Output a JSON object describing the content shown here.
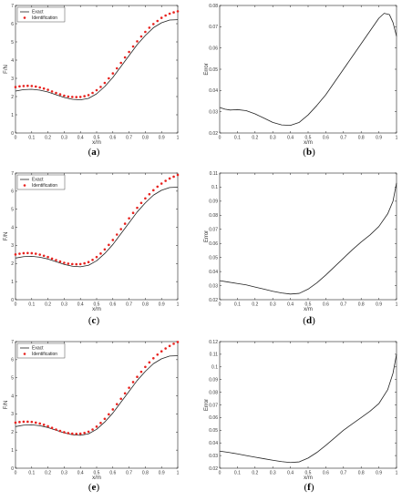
{
  "colors": {
    "exact": "#222222",
    "identification": "#e8231f",
    "error": "#222222",
    "axis": "#222222"
  },
  "chart_data": [
    {
      "id": "a",
      "panel_label": "a",
      "type": "line",
      "xlabel": "x/m",
      "ylabel": "F/N",
      "xlim": [
        0,
        1
      ],
      "ylim": [
        0,
        7
      ],
      "xticks": [
        "0",
        "0.1",
        "0.2",
        "0.3",
        "0.4",
        "0.5",
        "0.6",
        "0.7",
        "0.8",
        "0.9",
        "1"
      ],
      "yticks": [
        "0",
        "1",
        "2",
        "3",
        "4",
        "5",
        "6",
        "7"
      ],
      "legend_position": "top-left",
      "series": [
        {
          "name": "Exact",
          "style": "line",
          "x": [
            0,
            0.05,
            0.1,
            0.15,
            0.2,
            0.25,
            0.3,
            0.35,
            0.4,
            0.45,
            0.5,
            0.55,
            0.6,
            0.65,
            0.7,
            0.75,
            0.8,
            0.85,
            0.9,
            0.95,
            1
          ],
          "y": [
            2.3,
            2.38,
            2.4,
            2.35,
            2.25,
            2.1,
            1.95,
            1.85,
            1.82,
            1.9,
            2.15,
            2.55,
            3.05,
            3.65,
            4.25,
            4.85,
            5.35,
            5.78,
            6.05,
            6.2,
            6.22
          ]
        },
        {
          "name": "Identification",
          "style": "markers",
          "x": [
            0,
            0.025,
            0.05,
            0.075,
            0.1,
            0.125,
            0.15,
            0.175,
            0.2,
            0.225,
            0.25,
            0.275,
            0.3,
            0.325,
            0.35,
            0.375,
            0.4,
            0.425,
            0.45,
            0.475,
            0.5,
            0.525,
            0.55,
            0.575,
            0.6,
            0.625,
            0.65,
            0.675,
            0.7,
            0.725,
            0.75,
            0.775,
            0.8,
            0.825,
            0.85,
            0.875,
            0.9,
            0.925,
            0.95,
            0.975,
            1
          ],
          "y": [
            2.52,
            2.56,
            2.58,
            2.59,
            2.58,
            2.55,
            2.5,
            2.44,
            2.37,
            2.28,
            2.2,
            2.12,
            2.05,
            2.0,
            1.98,
            1.97,
            1.98,
            2.02,
            2.08,
            2.2,
            2.35,
            2.53,
            2.75,
            3.0,
            3.27,
            3.55,
            3.85,
            4.15,
            4.45,
            4.75,
            5.03,
            5.3,
            5.55,
            5.78,
            5.98,
            6.15,
            6.32,
            6.45,
            6.55,
            6.62,
            6.68
          ]
        }
      ]
    },
    {
      "id": "b",
      "panel_label": "b",
      "type": "line",
      "xlabel": "x/m",
      "ylabel": "Error",
      "xlim": [
        0,
        1
      ],
      "ylim": [
        0.02,
        0.08
      ],
      "xticks": [
        "0",
        "0.1",
        "0.2",
        "0.3",
        "0.4",
        "0.5",
        "0.6",
        "0.7",
        "0.8",
        "0.9",
        "1"
      ],
      "yticks": [
        "0.02",
        "0.03",
        "0.04",
        "0.05",
        "0.06",
        "0.07",
        "0.08"
      ],
      "series": [
        {
          "name": "",
          "style": "line",
          "x": [
            0,
            0.03,
            0.06,
            0.1,
            0.15,
            0.2,
            0.25,
            0.3,
            0.35,
            0.4,
            0.45,
            0.5,
            0.55,
            0.6,
            0.65,
            0.7,
            0.75,
            0.8,
            0.85,
            0.9,
            0.93,
            0.96,
            0.98,
            1
          ],
          "y": [
            0.032,
            0.0312,
            0.0308,
            0.031,
            0.0305,
            0.029,
            0.027,
            0.025,
            0.0238,
            0.0236,
            0.025,
            0.0285,
            0.033,
            0.038,
            0.044,
            0.05,
            0.056,
            0.062,
            0.068,
            0.074,
            0.0763,
            0.0757,
            0.072,
            0.0655
          ]
        }
      ]
    },
    {
      "id": "c",
      "panel_label": "c",
      "type": "line",
      "xlabel": "x/m",
      "ylabel": "F/N",
      "xlim": [
        0,
        1
      ],
      "ylim": [
        0,
        7
      ],
      "xticks": [
        "0",
        "0.1",
        "0.2",
        "0.3",
        "0.4",
        "0.5",
        "0.6",
        "0.7",
        "0.8",
        "0.9",
        "1"
      ],
      "yticks": [
        "0",
        "1",
        "2",
        "3",
        "4",
        "5",
        "6",
        "7"
      ],
      "legend_position": "top-left",
      "series": [
        {
          "name": "Exact",
          "style": "line",
          "x": [
            0,
            0.05,
            0.1,
            0.15,
            0.2,
            0.25,
            0.3,
            0.35,
            0.4,
            0.45,
            0.5,
            0.55,
            0.6,
            0.65,
            0.7,
            0.75,
            0.8,
            0.85,
            0.9,
            0.95,
            1
          ],
          "y": [
            2.3,
            2.38,
            2.4,
            2.35,
            2.25,
            2.1,
            1.95,
            1.85,
            1.82,
            1.9,
            2.15,
            2.55,
            3.05,
            3.65,
            4.25,
            4.85,
            5.35,
            5.78,
            6.05,
            6.2,
            6.22
          ]
        },
        {
          "name": "Identification",
          "style": "markers",
          "x": [
            0,
            0.025,
            0.05,
            0.075,
            0.1,
            0.125,
            0.15,
            0.175,
            0.2,
            0.225,
            0.25,
            0.275,
            0.3,
            0.325,
            0.35,
            0.375,
            0.4,
            0.425,
            0.45,
            0.475,
            0.5,
            0.525,
            0.55,
            0.575,
            0.6,
            0.625,
            0.65,
            0.675,
            0.7,
            0.725,
            0.75,
            0.775,
            0.8,
            0.825,
            0.85,
            0.875,
            0.9,
            0.925,
            0.95,
            0.975,
            1
          ],
          "y": [
            2.5,
            2.54,
            2.57,
            2.58,
            2.57,
            2.54,
            2.49,
            2.43,
            2.36,
            2.27,
            2.19,
            2.11,
            2.04,
            1.99,
            1.97,
            1.96,
            1.97,
            2.01,
            2.08,
            2.2,
            2.36,
            2.55,
            2.78,
            3.03,
            3.3,
            3.6,
            3.9,
            4.2,
            4.5,
            4.8,
            5.08,
            5.35,
            5.6,
            5.83,
            6.05,
            6.25,
            6.42,
            6.57,
            6.7,
            6.8,
            6.9
          ]
        }
      ]
    },
    {
      "id": "d",
      "panel_label": "d",
      "type": "line",
      "xlabel": "x/m",
      "ylabel": "Error",
      "xlim": [
        0,
        1
      ],
      "ylim": [
        0.02,
        0.11
      ],
      "xticks": [
        "0",
        "0.1",
        "0.2",
        "0.3",
        "0.4",
        "0.5",
        "0.6",
        "0.7",
        "0.8",
        "0.9",
        "1"
      ],
      "yticks": [
        "0.02",
        "0.03",
        "0.04",
        "0.05",
        "0.06",
        "0.07",
        "0.08",
        "0.09",
        "0.1",
        "0.11"
      ],
      "series": [
        {
          "name": "",
          "style": "line",
          "x": [
            0,
            0.05,
            0.1,
            0.15,
            0.2,
            0.25,
            0.3,
            0.35,
            0.4,
            0.45,
            0.5,
            0.55,
            0.6,
            0.65,
            0.7,
            0.75,
            0.8,
            0.85,
            0.9,
            0.95,
            0.98,
            1
          ],
          "y": [
            0.0335,
            0.0325,
            0.0315,
            0.0305,
            0.029,
            0.0275,
            0.026,
            0.0248,
            0.024,
            0.0245,
            0.0275,
            0.032,
            0.0375,
            0.0435,
            0.0495,
            0.0555,
            0.061,
            0.066,
            0.072,
            0.081,
            0.09,
            0.103
          ]
        }
      ]
    },
    {
      "id": "e",
      "panel_label": "e",
      "type": "line",
      "xlabel": "x/m",
      "ylabel": "F/N",
      "xlim": [
        0,
        1
      ],
      "ylim": [
        0,
        7
      ],
      "xticks": [
        "0",
        "0.1",
        "0.2",
        "0.3",
        "0.4",
        "0.5",
        "0.6",
        "0.7",
        "0.8",
        "0.9",
        "1"
      ],
      "yticks": [
        "0",
        "1",
        "2",
        "3",
        "4",
        "5",
        "6",
        "7"
      ],
      "legend_position": "top-left",
      "series": [
        {
          "name": "Exact",
          "style": "line",
          "x": [
            0,
            0.05,
            0.1,
            0.15,
            0.2,
            0.25,
            0.3,
            0.35,
            0.4,
            0.45,
            0.5,
            0.55,
            0.6,
            0.65,
            0.7,
            0.75,
            0.8,
            0.85,
            0.9,
            0.95,
            1
          ],
          "y": [
            2.3,
            2.38,
            2.4,
            2.35,
            2.25,
            2.1,
            1.95,
            1.85,
            1.82,
            1.9,
            2.15,
            2.55,
            3.05,
            3.65,
            4.25,
            4.85,
            5.35,
            5.78,
            6.05,
            6.2,
            6.22
          ]
        },
        {
          "name": "Identification",
          "style": "markers",
          "x": [
            0,
            0.025,
            0.05,
            0.075,
            0.1,
            0.125,
            0.15,
            0.175,
            0.2,
            0.225,
            0.25,
            0.275,
            0.3,
            0.325,
            0.35,
            0.375,
            0.4,
            0.425,
            0.45,
            0.475,
            0.5,
            0.525,
            0.55,
            0.575,
            0.6,
            0.625,
            0.65,
            0.675,
            0.7,
            0.725,
            0.75,
            0.775,
            0.8,
            0.825,
            0.85,
            0.875,
            0.9,
            0.925,
            0.95,
            0.975,
            1
          ],
          "y": [
            2.52,
            2.55,
            2.57,
            2.57,
            2.56,
            2.52,
            2.47,
            2.4,
            2.32,
            2.23,
            2.14,
            2.06,
            1.99,
            1.94,
            1.91,
            1.9,
            1.91,
            1.95,
            2.02,
            2.14,
            2.3,
            2.5,
            2.73,
            2.98,
            3.25,
            3.54,
            3.84,
            4.14,
            4.45,
            4.76,
            5.05,
            5.33,
            5.6,
            5.85,
            6.08,
            6.28,
            6.46,
            6.62,
            6.76,
            6.88,
            6.98
          ]
        }
      ]
    },
    {
      "id": "f",
      "panel_label": "f",
      "type": "line",
      "xlabel": "x/m",
      "ylabel": "Error",
      "xlim": [
        0,
        1
      ],
      "ylim": [
        0.02,
        0.12
      ],
      "xticks": [
        "0",
        "0.1",
        "0.2",
        "0.3",
        "0.4",
        "0.5",
        "0.6",
        "0.7",
        "0.8",
        "0.9",
        "1"
      ],
      "yticks": [
        "0.02",
        "0.03",
        "0.04",
        "0.05",
        "0.06",
        "0.07",
        "0.08",
        "0.09",
        "0.1",
        "0.11",
        "0.12"
      ],
      "series": [
        {
          "name": "",
          "style": "line",
          "x": [
            0,
            0.05,
            0.1,
            0.15,
            0.2,
            0.25,
            0.3,
            0.35,
            0.4,
            0.45,
            0.5,
            0.55,
            0.6,
            0.65,
            0.7,
            0.75,
            0.8,
            0.85,
            0.9,
            0.95,
            0.98,
            1
          ],
          "y": [
            0.0335,
            0.0325,
            0.0313,
            0.03,
            0.0287,
            0.0275,
            0.0263,
            0.0252,
            0.0245,
            0.025,
            0.028,
            0.0325,
            0.038,
            0.044,
            0.05,
            0.055,
            0.06,
            0.065,
            0.071,
            0.082,
            0.095,
            0.11
          ]
        }
      ]
    }
  ]
}
